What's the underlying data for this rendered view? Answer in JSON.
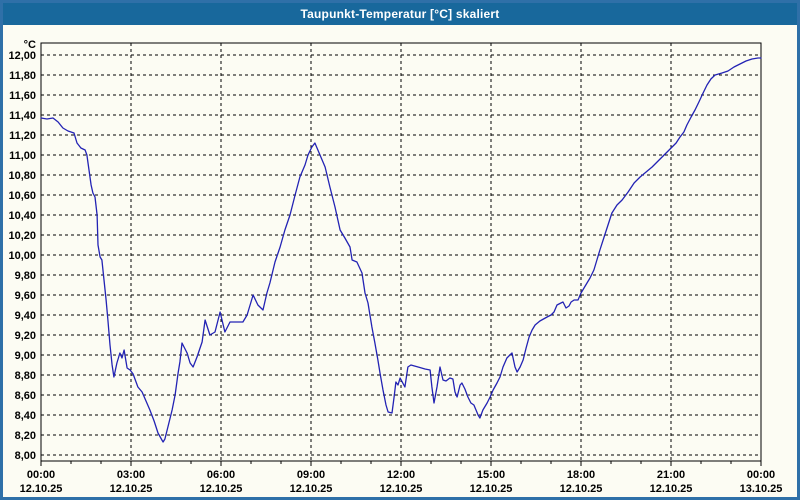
{
  "window": {
    "title": "Taupunkt-Temperatur [°C] skaliert"
  },
  "colors": {
    "title_bar": "#18689c",
    "title_text": "#ffffff",
    "outer_border": "#2f70a8",
    "background": "#fcfcf3",
    "grid": "#000000",
    "line": "#2323b4",
    "text": "#000000"
  },
  "chart_data": {
    "type": "line",
    "title": "Taupunkt-Temperatur [°C] skaliert",
    "unit_label": "°C",
    "xlabel": "",
    "ylabel": "°C",
    "xlim_hours": [
      0,
      24
    ],
    "ylim": [
      8.0,
      12.0
    ],
    "grid": "dashed-both-axes",
    "legend": "none",
    "x_minor_step_hours": 1,
    "x_major_step_hours": 3,
    "y_ticks": [
      {
        "v": 12.0,
        "label": "12,00"
      },
      {
        "v": 11.8,
        "label": "11,80"
      },
      {
        "v": 11.6,
        "label": "11,60"
      },
      {
        "v": 11.4,
        "label": "11,40"
      },
      {
        "v": 11.2,
        "label": "11,20"
      },
      {
        "v": 11.0,
        "label": "11,00"
      },
      {
        "v": 10.8,
        "label": "10,80"
      },
      {
        "v": 10.6,
        "label": "10,60"
      },
      {
        "v": 10.4,
        "label": "10,40"
      },
      {
        "v": 10.2,
        "label": "10,20"
      },
      {
        "v": 10.0,
        "label": "10,00"
      },
      {
        "v": 9.8,
        "label": "9,80"
      },
      {
        "v": 9.6,
        "label": "9,60"
      },
      {
        "v": 9.4,
        "label": "9,40"
      },
      {
        "v": 9.2,
        "label": "9,20"
      },
      {
        "v": 9.0,
        "label": "9,00"
      },
      {
        "v": 8.8,
        "label": "8,80"
      },
      {
        "v": 8.6,
        "label": "8,60"
      },
      {
        "v": 8.4,
        "label": "8,40"
      },
      {
        "v": 8.2,
        "label": "8,20"
      },
      {
        "v": 8.0,
        "label": "8,00"
      }
    ],
    "x_ticks": [
      {
        "h": 0,
        "time": "00:00",
        "date": "12.10.25"
      },
      {
        "h": 3,
        "time": "03:00",
        "date": "12.10.25"
      },
      {
        "h": 6,
        "time": "06:00",
        "date": "12.10.25"
      },
      {
        "h": 9,
        "time": "09:00",
        "date": "12.10.25"
      },
      {
        "h": 12,
        "time": "12:00",
        "date": "12.10.25"
      },
      {
        "h": 15,
        "time": "15:00",
        "date": "12.10.25"
      },
      {
        "h": 18,
        "time": "18:00",
        "date": "12.10.25"
      },
      {
        "h": 21,
        "time": "21:00",
        "date": "12.10.25"
      },
      {
        "h": 24,
        "time": "00:00",
        "date": "13.10.25"
      }
    ],
    "series": [
      {
        "name": "Taupunkt-Temperatur",
        "points": [
          [
            0.0,
            11.37
          ],
          [
            0.2,
            11.36
          ],
          [
            0.4,
            11.37
          ],
          [
            0.57,
            11.33
          ],
          [
            0.73,
            11.27
          ],
          [
            0.9,
            11.24
          ],
          [
            1.1,
            11.22
          ],
          [
            1.2,
            11.12
          ],
          [
            1.33,
            11.07
          ],
          [
            1.47,
            11.05
          ],
          [
            1.53,
            11.0
          ],
          [
            1.6,
            10.85
          ],
          [
            1.67,
            10.7
          ],
          [
            1.73,
            10.62
          ],
          [
            1.8,
            10.58
          ],
          [
            1.87,
            10.4
          ],
          [
            1.9,
            10.1
          ],
          [
            1.97,
            9.98
          ],
          [
            2.03,
            9.95
          ],
          [
            2.1,
            9.75
          ],
          [
            2.17,
            9.55
          ],
          [
            2.23,
            9.35
          ],
          [
            2.3,
            9.1
          ],
          [
            2.37,
            8.9
          ],
          [
            2.43,
            8.78
          ],
          [
            2.53,
            8.92
          ],
          [
            2.63,
            9.02
          ],
          [
            2.7,
            8.97
          ],
          [
            2.77,
            9.05
          ],
          [
            2.87,
            8.87
          ],
          [
            2.97,
            8.85
          ],
          [
            3.07,
            8.81
          ],
          [
            3.23,
            8.68
          ],
          [
            3.37,
            8.63
          ],
          [
            3.5,
            8.54
          ],
          [
            3.63,
            8.45
          ],
          [
            3.77,
            8.34
          ],
          [
            3.9,
            8.22
          ],
          [
            4.03,
            8.15
          ],
          [
            4.07,
            8.13
          ],
          [
            4.13,
            8.16
          ],
          [
            4.23,
            8.28
          ],
          [
            4.37,
            8.45
          ],
          [
            4.47,
            8.6
          ],
          [
            4.57,
            8.82
          ],
          [
            4.63,
            8.93
          ],
          [
            4.7,
            9.12
          ],
          [
            4.87,
            9.02
          ],
          [
            4.97,
            8.92
          ],
          [
            5.07,
            8.88
          ],
          [
            5.2,
            8.98
          ],
          [
            5.37,
            9.13
          ],
          [
            5.47,
            9.35
          ],
          [
            5.63,
            9.2
          ],
          [
            5.8,
            9.23
          ],
          [
            5.97,
            9.43
          ],
          [
            6.13,
            9.23
          ],
          [
            6.3,
            9.33
          ],
          [
            6.73,
            9.33
          ],
          [
            6.87,
            9.4
          ],
          [
            7.07,
            9.6
          ],
          [
            7.23,
            9.5
          ],
          [
            7.4,
            9.45
          ],
          [
            7.53,
            9.62
          ],
          [
            7.63,
            9.72
          ],
          [
            7.8,
            9.93
          ],
          [
            7.97,
            10.08
          ],
          [
            8.13,
            10.25
          ],
          [
            8.3,
            10.4
          ],
          [
            8.47,
            10.6
          ],
          [
            8.63,
            10.78
          ],
          [
            8.8,
            10.9
          ],
          [
            8.9,
            11.0
          ],
          [
            9.03,
            11.08
          ],
          [
            9.13,
            11.12
          ],
          [
            9.3,
            11.0
          ],
          [
            9.47,
            10.88
          ],
          [
            9.63,
            10.68
          ],
          [
            9.8,
            10.48
          ],
          [
            9.97,
            10.25
          ],
          [
            10.13,
            10.17
          ],
          [
            10.3,
            10.08
          ],
          [
            10.37,
            9.95
          ],
          [
            10.53,
            9.93
          ],
          [
            10.7,
            9.82
          ],
          [
            10.8,
            9.62
          ],
          [
            10.9,
            9.52
          ],
          [
            11.03,
            9.28
          ],
          [
            11.13,
            9.12
          ],
          [
            11.23,
            8.95
          ],
          [
            11.3,
            8.82
          ],
          [
            11.4,
            8.65
          ],
          [
            11.5,
            8.5
          ],
          [
            11.57,
            8.43
          ],
          [
            11.7,
            8.42
          ],
          [
            11.77,
            8.58
          ],
          [
            11.83,
            8.73
          ],
          [
            11.9,
            8.7
          ],
          [
            11.97,
            8.77
          ],
          [
            12.13,
            8.68
          ],
          [
            12.23,
            8.88
          ],
          [
            12.33,
            8.9
          ],
          [
            12.57,
            8.88
          ],
          [
            12.8,
            8.86
          ],
          [
            12.97,
            8.85
          ],
          [
            13.03,
            8.68
          ],
          [
            13.1,
            8.52
          ],
          [
            13.2,
            8.68
          ],
          [
            13.3,
            8.88
          ],
          [
            13.4,
            8.75
          ],
          [
            13.5,
            8.74
          ],
          [
            13.63,
            8.77
          ],
          [
            13.73,
            8.76
          ],
          [
            13.8,
            8.63
          ],
          [
            13.87,
            8.58
          ],
          [
            13.97,
            8.7
          ],
          [
            14.03,
            8.72
          ],
          [
            14.13,
            8.66
          ],
          [
            14.23,
            8.58
          ],
          [
            14.33,
            8.52
          ],
          [
            14.43,
            8.5
          ],
          [
            14.57,
            8.4
          ],
          [
            14.63,
            8.37
          ],
          [
            14.73,
            8.45
          ],
          [
            14.87,
            8.52
          ],
          [
            14.97,
            8.58
          ],
          [
            15.07,
            8.65
          ],
          [
            15.2,
            8.72
          ],
          [
            15.3,
            8.78
          ],
          [
            15.4,
            8.88
          ],
          [
            15.53,
            8.97
          ],
          [
            15.63,
            9.0
          ],
          [
            15.7,
            9.02
          ],
          [
            15.8,
            8.88
          ],
          [
            15.87,
            8.83
          ],
          [
            15.97,
            8.88
          ],
          [
            16.07,
            8.95
          ],
          [
            16.17,
            9.07
          ],
          [
            16.27,
            9.18
          ],
          [
            16.37,
            9.25
          ],
          [
            16.47,
            9.3
          ],
          [
            16.63,
            9.34
          ],
          [
            16.87,
            9.38
          ],
          [
            17.0,
            9.4
          ],
          [
            17.1,
            9.43
          ],
          [
            17.2,
            9.5
          ],
          [
            17.33,
            9.52
          ],
          [
            17.4,
            9.53
          ],
          [
            17.5,
            9.47
          ],
          [
            17.6,
            9.49
          ],
          [
            17.67,
            9.53
          ],
          [
            17.77,
            9.55
          ],
          [
            17.9,
            9.55
          ],
          [
            18.0,
            9.62
          ],
          [
            18.1,
            9.67
          ],
          [
            18.2,
            9.72
          ],
          [
            18.3,
            9.77
          ],
          [
            18.43,
            9.85
          ],
          [
            18.53,
            9.95
          ],
          [
            18.63,
            10.05
          ],
          [
            18.77,
            10.18
          ],
          [
            18.9,
            10.3
          ],
          [
            19.03,
            10.42
          ],
          [
            19.2,
            10.5
          ],
          [
            19.37,
            10.55
          ],
          [
            19.57,
            10.63
          ],
          [
            19.77,
            10.72
          ],
          [
            19.97,
            10.78
          ],
          [
            20.17,
            10.83
          ],
          [
            20.37,
            10.88
          ],
          [
            20.57,
            10.94
          ],
          [
            20.77,
            11.0
          ],
          [
            20.97,
            11.06
          ],
          [
            21.17,
            11.12
          ],
          [
            21.3,
            11.18
          ],
          [
            21.43,
            11.23
          ],
          [
            21.53,
            11.3
          ],
          [
            21.67,
            11.38
          ],
          [
            21.8,
            11.45
          ],
          [
            21.93,
            11.53
          ],
          [
            22.07,
            11.62
          ],
          [
            22.2,
            11.7
          ],
          [
            22.33,
            11.76
          ],
          [
            22.47,
            11.8
          ],
          [
            22.7,
            11.82
          ],
          [
            22.9,
            11.84
          ],
          [
            23.1,
            11.88
          ],
          [
            23.3,
            11.91
          ],
          [
            23.5,
            11.94
          ],
          [
            23.7,
            11.96
          ],
          [
            23.9,
            11.97
          ],
          [
            24.0,
            11.97
          ]
        ]
      }
    ]
  }
}
